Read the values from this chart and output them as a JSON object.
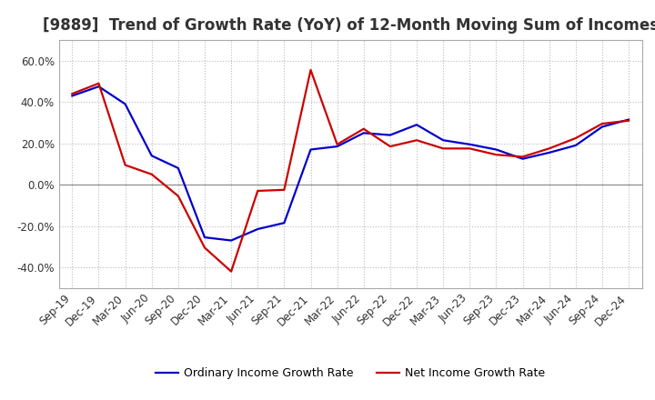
{
  "title": "[9889]  Trend of Growth Rate (YoY) of 12-Month Moving Sum of Incomes",
  "title_fontsize": 12,
  "title_color": "#333333",
  "ylim": [
    -0.5,
    0.7
  ],
  "yticks": [
    -0.4,
    -0.2,
    0.0,
    0.2,
    0.4,
    0.6
  ],
  "background_color": "#ffffff",
  "plot_bg_color": "#ffffff",
  "grid_color": "#bbbbbb",
  "legend_labels": [
    "Ordinary Income Growth Rate",
    "Net Income Growth Rate"
  ],
  "x_labels": [
    "Sep-19",
    "Dec-19",
    "Mar-20",
    "Jun-20",
    "Sep-20",
    "Dec-20",
    "Mar-21",
    "Jun-21",
    "Sep-21",
    "Dec-21",
    "Mar-22",
    "Jun-22",
    "Sep-22",
    "Dec-22",
    "Mar-23",
    "Jun-23",
    "Sep-23",
    "Dec-23",
    "Mar-24",
    "Jun-24",
    "Sep-24",
    "Dec-24"
  ],
  "ordinary_income": [
    0.43,
    0.475,
    0.39,
    0.14,
    0.08,
    -0.255,
    -0.27,
    -0.215,
    -0.185,
    0.17,
    0.185,
    0.25,
    0.24,
    0.29,
    0.215,
    0.195,
    0.17,
    0.125,
    0.155,
    0.19,
    0.28,
    0.315
  ],
  "net_income": [
    0.44,
    0.49,
    0.095,
    0.05,
    -0.055,
    -0.305,
    -0.42,
    -0.03,
    -0.025,
    0.555,
    0.195,
    0.27,
    0.185,
    0.215,
    0.175,
    0.175,
    0.145,
    0.135,
    0.175,
    0.225,
    0.295,
    0.31
  ],
  "ordinary_color": "#0000cc",
  "net_color": "#cc0000",
  "line_width": 1.6,
  "tick_fontsize": 8.5,
  "legend_fontsize": 9
}
